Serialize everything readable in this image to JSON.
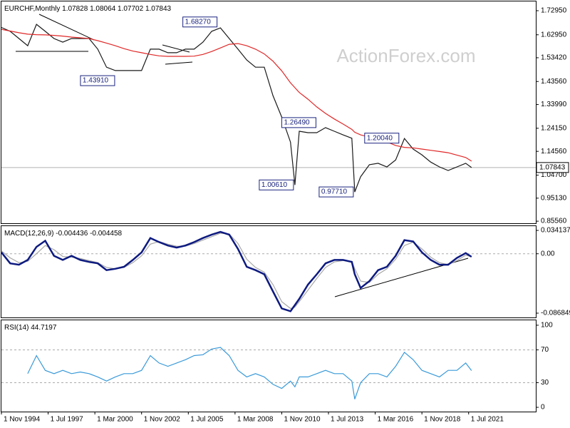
{
  "chart_data": [
    {
      "type": "line",
      "title": "EURCHF,Monthly",
      "readout": [
        1.07828,
        1.08064,
        1.07702,
        1.07843
      ],
      "watermark": "ActionForex.com",
      "x": [
        "1994-11",
        "1995-05",
        "1995-11",
        "1996-05",
        "1996-11",
        "1997-05",
        "1997-11",
        "1998-05",
        "1998-11",
        "1999-05",
        "1999-11",
        "2000-05",
        "2000-11",
        "2001-05",
        "2001-11",
        "2002-05",
        "2002-11",
        "2003-05",
        "2003-11",
        "2004-05",
        "2004-11",
        "2005-05",
        "2005-11",
        "2006-05",
        "2006-11",
        "2007-05",
        "2007-11",
        "2008-05",
        "2008-11",
        "2009-05",
        "2009-11",
        "2010-05",
        "2010-11",
        "2011-05",
        "2011-08",
        "2011-11",
        "2012-05",
        "2012-11",
        "2013-05",
        "2013-11",
        "2014-05",
        "2014-11",
        "2015-01",
        "2015-05",
        "2015-11",
        "2016-05",
        "2016-11",
        "2017-05",
        "2017-11",
        "2018-05",
        "2018-11",
        "2019-05",
        "2019-11",
        "2020-05",
        "2020-11",
        "2021-05",
        "2021-09"
      ],
      "series": [
        {
          "color": "#1a1a1a",
          "values": [
            1.66,
            1.644,
            1.614,
            1.584,
            1.673,
            1.644,
            1.614,
            1.599,
            1.614,
            1.614,
            1.614,
            1.57,
            1.495,
            1.481,
            1.481,
            1.481,
            1.481,
            1.57,
            1.57,
            1.555,
            1.555,
            1.57,
            1.57,
            1.599,
            1.644,
            1.658,
            1.614,
            1.57,
            1.525,
            1.495,
            1.495,
            1.377,
            1.288,
            1.184,
            1.0061,
            1.229,
            1.223,
            1.223,
            1.244,
            1.229,
            1.214,
            1.2,
            0.9771,
            1.04,
            1.09,
            1.096,
            1.081,
            1.11,
            1.199,
            1.155,
            1.131,
            1.101,
            1.081,
            1.066,
            1.081,
            1.096,
            1.07843
          ]
        },
        {
          "color": "#e02828",
          "values": [
            1.652,
            1.645,
            1.638,
            1.632,
            1.63,
            1.629,
            1.627,
            1.624,
            1.62,
            1.617,
            1.614,
            1.605,
            1.595,
            1.584,
            1.572,
            1.562,
            1.555,
            1.548,
            1.542,
            1.54,
            1.54,
            1.54,
            1.541,
            1.548,
            1.56,
            1.575,
            1.59,
            1.593,
            1.584,
            1.57,
            1.55,
            1.52,
            1.48,
            1.43,
            1.41,
            1.39,
            1.362,
            1.33,
            1.303,
            1.28,
            1.259,
            1.237,
            1.225,
            1.214,
            1.205,
            1.199,
            1.185,
            1.17,
            1.162,
            1.16,
            1.155,
            1.15,
            1.145,
            1.14,
            1.13,
            1.12,
            1.105
          ]
        }
      ],
      "price_line": {
        "value": 1.07843,
        "label": "1.07843"
      },
      "annotations": [
        {
          "x": "2007-10",
          "value": 1.6827,
          "label": "1.68270"
        },
        {
          "x": "2001-07",
          "value": 1.4391,
          "label": "1.43910"
        },
        {
          "x": "2010-11",
          "value": 1.2649,
          "label": "1.26490"
        },
        {
          "x": "2011-08",
          "value": 1.0061,
          "label": "1.00610"
        },
        {
          "x": "2015-01",
          "value": 0.9771,
          "label": "0.97710"
        },
        {
          "x": "2018-04",
          "value": 1.2004,
          "label": "1.20040"
        }
      ],
      "xlim": [
        "1994-11",
        "2025-05"
      ],
      "ylim": [
        0.847,
        1.768
      ],
      "yticks": [
        {
          "value": 1.7295,
          "label": "1.72950"
        },
        {
          "value": 1.6295,
          "label": "1.62950"
        },
        {
          "value": 1.5342,
          "label": "1.53420"
        },
        {
          "value": 1.4356,
          "label": "1.43560"
        },
        {
          "value": 1.3399,
          "label": "1.33990"
        },
        {
          "value": 1.2415,
          "label": "1.24150"
        },
        {
          "value": 1.1456,
          "label": "1.14560"
        },
        {
          "value": 1.047,
          "label": "1.04700"
        },
        {
          "value": 0.9513,
          "label": "0.95130"
        },
        {
          "value": 0.8556,
          "label": "0.85560"
        }
      ]
    },
    {
      "type": "line",
      "title": "MACD(12,26,9)",
      "readout": [
        -0.004436,
        -0.004458
      ],
      "x": [
        "1994-11",
        "1995-05",
        "1995-11",
        "1996-05",
        "1996-11",
        "1997-05",
        "1997-11",
        "1998-05",
        "1998-11",
        "1999-05",
        "1999-11",
        "2000-05",
        "2000-11",
        "2001-05",
        "2001-11",
        "2002-05",
        "2002-11",
        "2003-05",
        "2003-11",
        "2004-05",
        "2004-11",
        "2005-05",
        "2005-11",
        "2006-05",
        "2006-11",
        "2007-05",
        "2007-11",
        "2008-05",
        "2008-11",
        "2009-05",
        "2009-11",
        "2010-05",
        "2010-11",
        "2011-05",
        "2011-08",
        "2011-11",
        "2012-05",
        "2012-11",
        "2013-05",
        "2013-11",
        "2014-05",
        "2014-11",
        "2015-01",
        "2015-05",
        "2015-11",
        "2016-05",
        "2016-11",
        "2017-05",
        "2017-11",
        "2018-05",
        "2018-11",
        "2019-05",
        "2019-11",
        "2020-05",
        "2020-11",
        "2021-05",
        "2021-09"
      ],
      "series": [
        {
          "color": "#a8a8a8",
          "values": [
            0.004,
            -0.006,
            -0.013,
            -0.011,
            0,
            0.012,
            0.006,
            -0.004,
            -0.005,
            -0.007,
            -0.01,
            -0.013,
            -0.02,
            -0.022,
            -0.02,
            -0.013,
            -0.003,
            0.014,
            0.018,
            0.014,
            0.011,
            0.011,
            0.015,
            0.02,
            0.025,
            0.03,
            0.029,
            0.015,
            -0.008,
            -0.02,
            -0.027,
            -0.045,
            -0.07,
            -0.08,
            -0.078,
            -0.07,
            -0.053,
            -0.036,
            -0.02,
            -0.012,
            -0.01,
            -0.011,
            -0.022,
            -0.04,
            -0.042,
            -0.03,
            -0.022,
            -0.008,
            0.012,
            0.017,
            0.007,
            -0.005,
            -0.013,
            -0.016,
            -0.01,
            -0.002,
            -0.004458
          ]
        },
        {
          "color": "#0d1a80",
          "values": [
            0.002,
            -0.014,
            -0.016,
            -0.009,
            0.01,
            0.019,
            -0.003,
            -0.009,
            -0.003,
            -0.009,
            -0.012,
            -0.014,
            -0.024,
            -0.022,
            -0.019,
            -0.009,
            0.002,
            0.023,
            0.017,
            0.012,
            0.009,
            0.012,
            0.017,
            0.023,
            0.028,
            0.032,
            0.028,
            0.007,
            -0.019,
            -0.024,
            -0.03,
            -0.055,
            -0.08,
            -0.084,
            -0.075,
            -0.066,
            -0.045,
            -0.03,
            -0.014,
            -0.009,
            -0.009,
            -0.012,
            -0.03,
            -0.05,
            -0.04,
            -0.024,
            -0.019,
            -0.003,
            0.02,
            0.018,
            0.002,
            -0.009,
            -0.016,
            -0.016,
            -0.006,
            0.001,
            -0.004436
          ]
        }
      ],
      "levels": [
        0
      ],
      "xlim": [
        "1994-11",
        "2025-05"
      ],
      "ylim": [
        -0.0931,
        0.0404
      ],
      "yticks": [
        0.034137,
        {
          "value": 0,
          "label": "0.00"
        },
        -0.086849
      ]
    },
    {
      "type": "line",
      "title": "RSI(14)",
      "readout": [
        44.7197
      ],
      "x": [
        "1994-11",
        "1995-05",
        "1995-11",
        "1996-05",
        "1996-11",
        "1997-05",
        "1997-11",
        "1998-05",
        "1998-11",
        "1999-05",
        "1999-11",
        "2000-05",
        "2000-11",
        "2001-05",
        "2001-11",
        "2002-05",
        "2002-11",
        "2003-05",
        "2003-11",
        "2004-05",
        "2004-11",
        "2005-05",
        "2005-11",
        "2006-05",
        "2006-11",
        "2007-05",
        "2007-11",
        "2008-05",
        "2008-11",
        "2009-05",
        "2009-11",
        "2010-05",
        "2010-11",
        "2011-05",
        "2011-08",
        "2011-11",
        "2012-05",
        "2012-11",
        "2013-05",
        "2013-11",
        "2014-05",
        "2014-11",
        "2015-01",
        "2015-05",
        "2015-11",
        "2016-05",
        "2016-11",
        "2017-05",
        "2017-11",
        "2018-05",
        "2018-11",
        "2019-05",
        "2019-11",
        "2020-05",
        "2020-11",
        "2021-05",
        "2021-09"
      ],
      "series": [
        {
          "color": "#3a9ad9",
          "values": [
            null,
            null,
            null,
            41,
            63,
            45,
            41,
            45,
            41,
            43,
            41,
            37,
            32,
            37,
            41,
            41,
            45,
            63,
            54,
            50,
            54,
            58,
            63,
            64,
            71,
            73,
            63,
            45,
            37,
            41,
            37,
            28,
            23,
            32,
            25,
            37,
            37,
            41,
            45,
            41,
            41,
            32,
            10,
            30,
            41,
            41,
            37,
            50,
            67,
            58,
            45,
            41,
            37,
            45,
            45,
            54,
            44.7197
          ]
        }
      ],
      "levels": [
        70,
        30
      ],
      "xlim": [
        "1994-11",
        "2025-05"
      ],
      "ylim": [
        -5.2,
        106
      ],
      "yticks": [
        100,
        70,
        30,
        0
      ],
      "xticks": [
        {
          "value": "1994-11",
          "label": "1 Nov 1994"
        },
        {
          "value": "1997-07",
          "label": "1 Jul 1997"
        },
        {
          "value": "2000-03",
          "label": "1 Mar 2000"
        },
        {
          "value": "2002-11",
          "label": "1 Nov 2002"
        },
        {
          "value": "2005-07",
          "label": "1 Jul 2005"
        },
        {
          "value": "2008-03",
          "label": "1 Mar 2008"
        },
        {
          "value": "2010-11",
          "label": "1 Nov 2010"
        },
        {
          "value": "2013-07",
          "label": "1 Jul 2013"
        },
        {
          "value": "2016-03",
          "label": "1 Mar 2016"
        },
        {
          "value": "2018-11",
          "label": "1 Nov 2018"
        },
        {
          "value": "2021-07",
          "label": "1 Jul 2021"
        }
      ]
    }
  ]
}
